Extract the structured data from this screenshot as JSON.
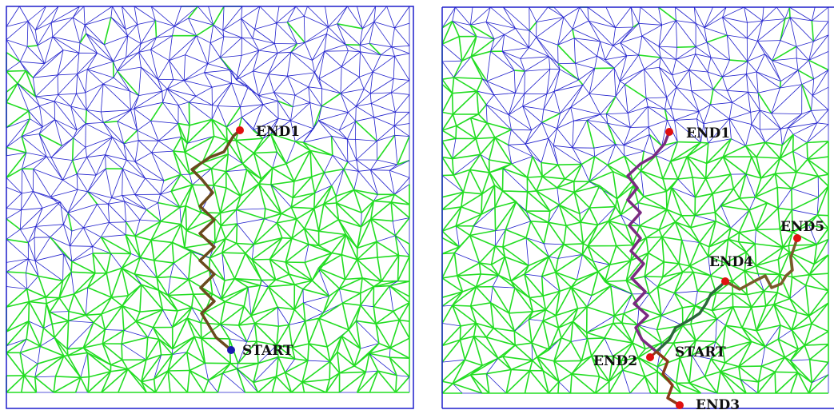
{
  "panels": [
    {
      "id": "left",
      "labels": {
        "end1": "END1",
        "start": "START"
      }
    },
    {
      "id": "right",
      "labels": {
        "end1": "END1",
        "end2": "END2",
        "end3": "END3",
        "end4": "END4",
        "end5": "END5",
        "start": "START"
      }
    }
  ],
  "colors": {
    "mesh_primary": "#1f1fcc",
    "mesh_secondary": "#22dd22",
    "end_marker": "#e01010",
    "start_marker_left": "#1a1ab0",
    "path_brown": "#6b4a1e",
    "path_purple": "#7a2a80",
    "path_dark_green": "#2a6a3a",
    "path_olive": "#7a5a2a",
    "path_rust": "#8a3a18"
  }
}
